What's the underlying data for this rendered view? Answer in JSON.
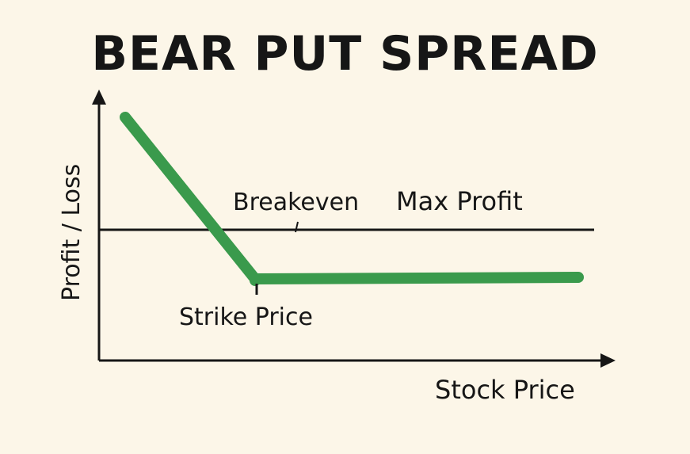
{
  "title": "BEAR PUT SPREAD",
  "axes": {
    "y_label": "Profit / Loss",
    "x_label": "Stock Price"
  },
  "annotations": {
    "breakeven": "Breakeven",
    "max_profit": "Max Profit",
    "strike_price": "Strike Price"
  },
  "colors": {
    "background": "#fcf6e8",
    "payoff_line": "#3a9a4c",
    "axis": "#161616"
  }
}
